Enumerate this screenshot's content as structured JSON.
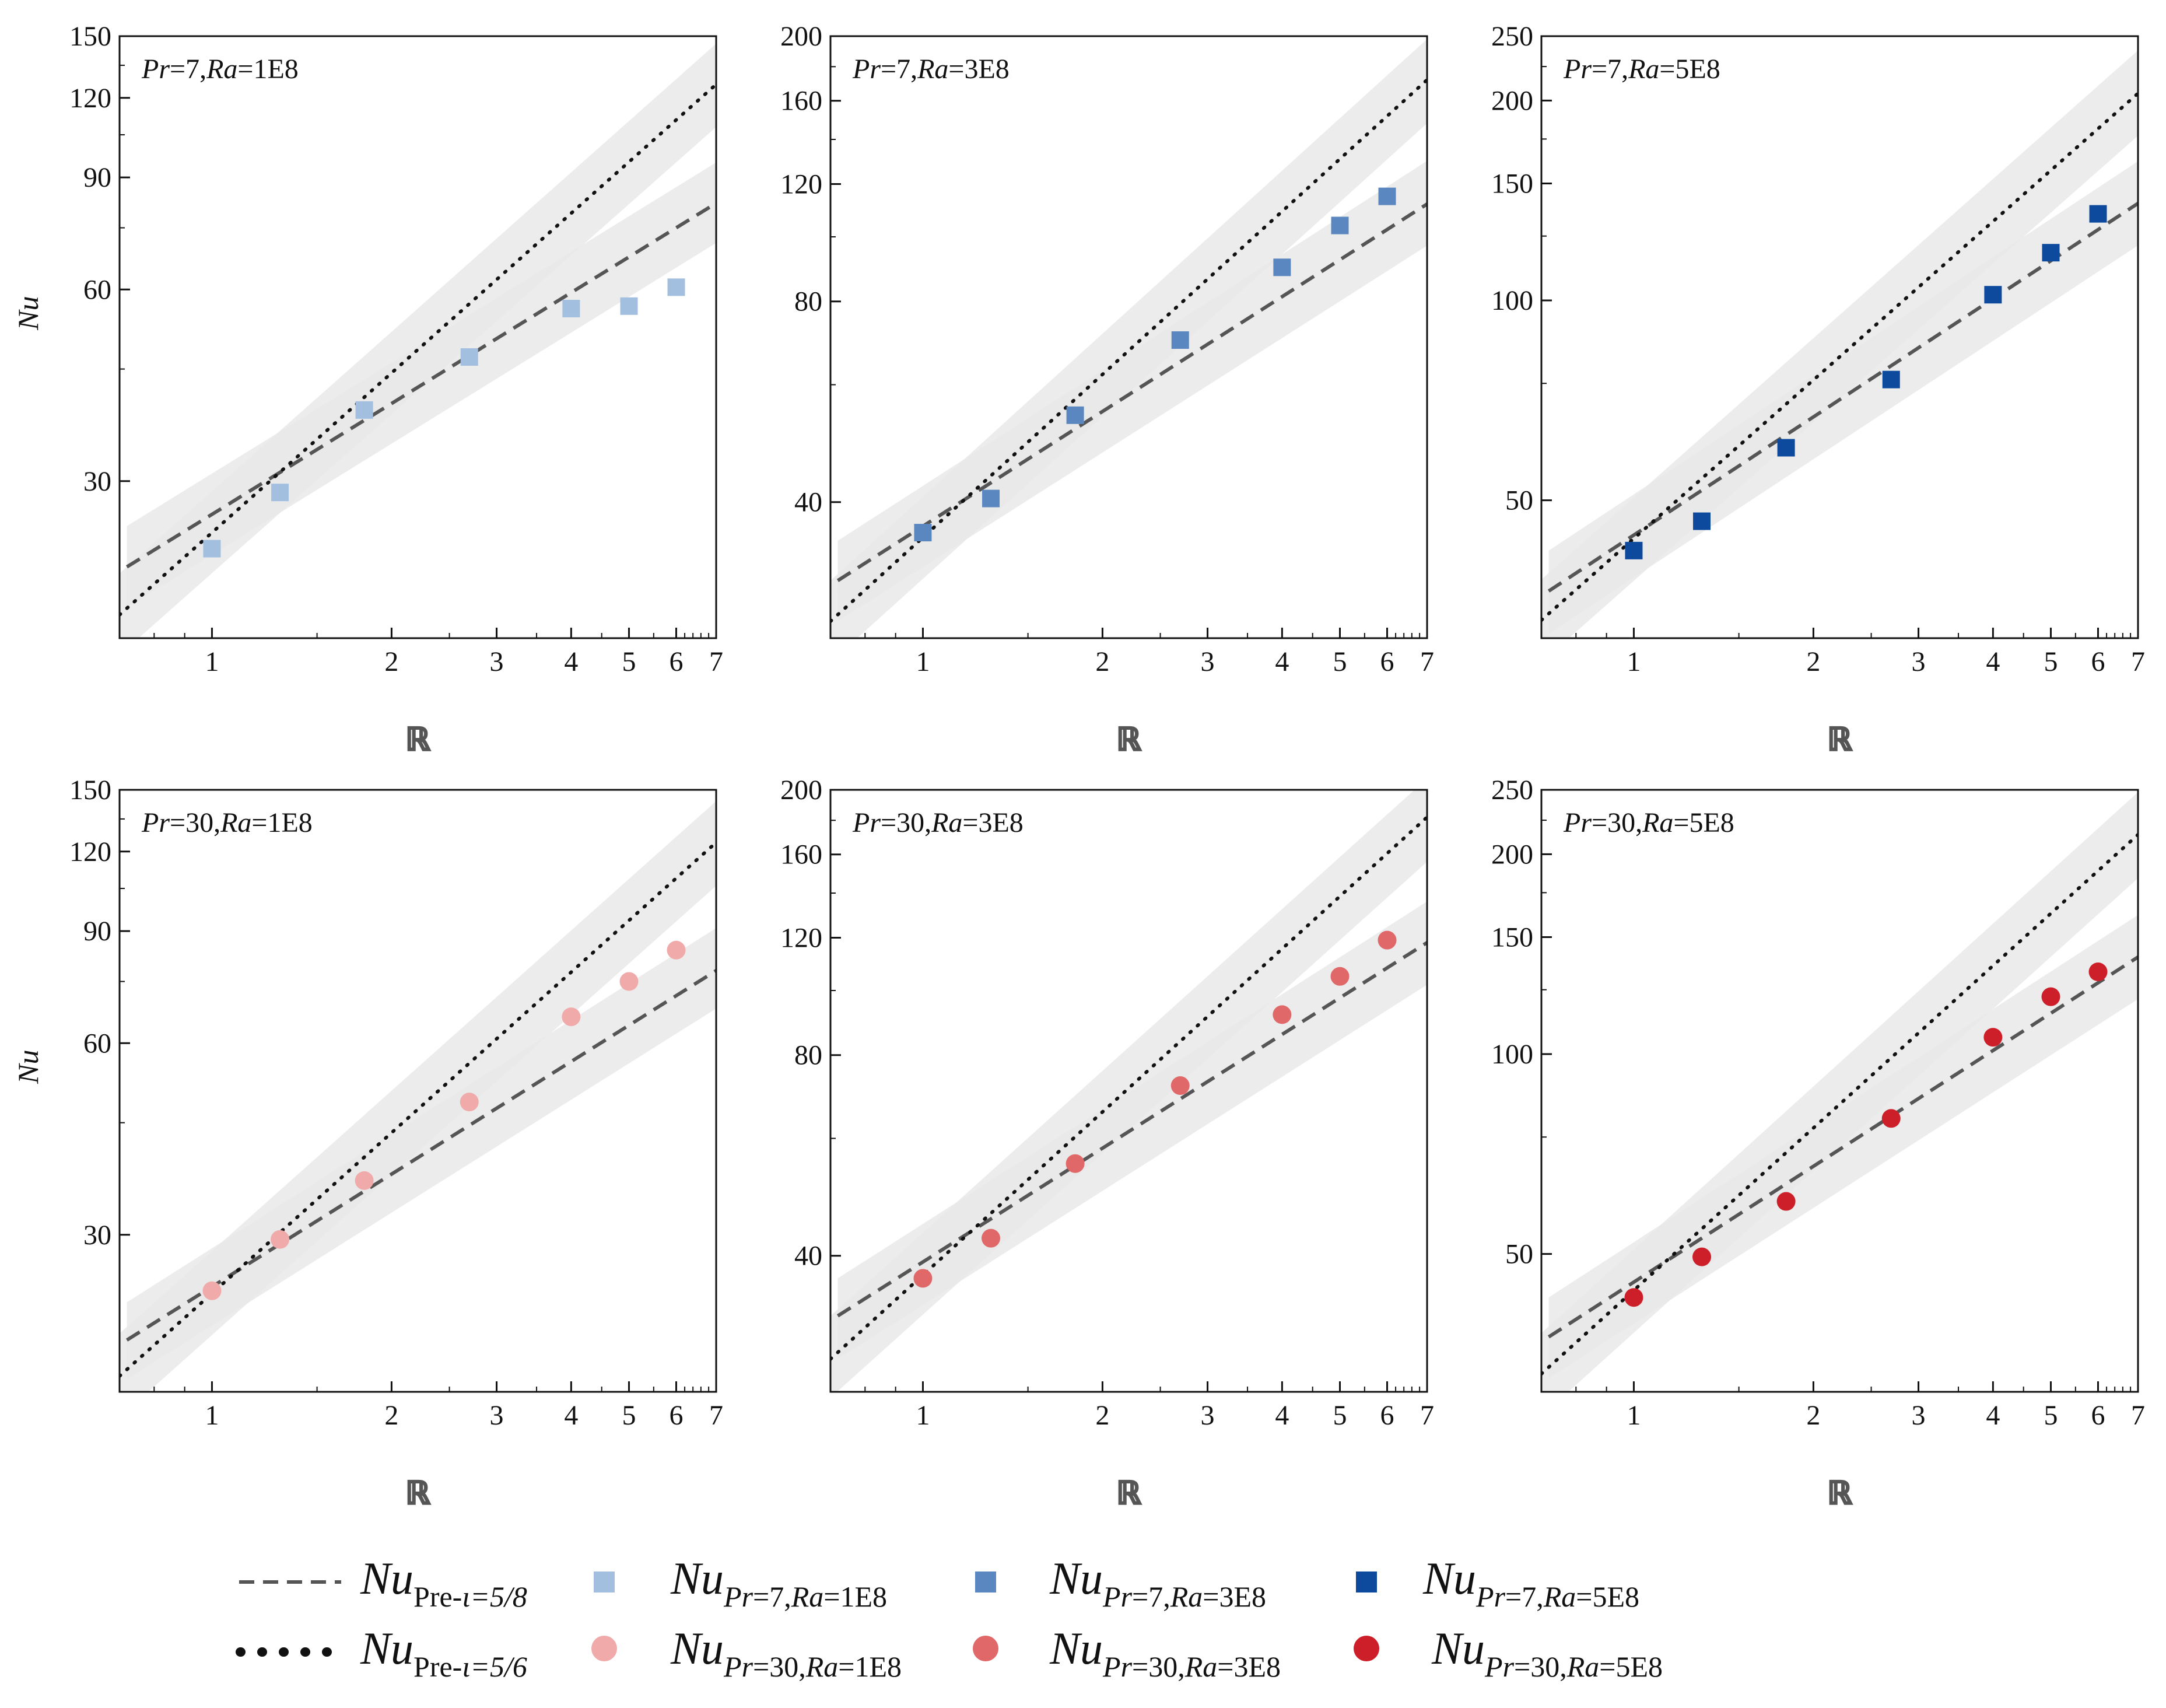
{
  "colors": {
    "band": "#e9e9e9",
    "dashed": "#555555",
    "dotted": "#111111",
    "sq_1e8": "#a3bfe0",
    "sq_3e8": "#5b87c0",
    "sq_5e8": "#0d4a9e",
    "ci_1e8": "#f1aaaa",
    "ci_3e8": "#e06868",
    "ci_5e8": "#cc1f29"
  },
  "legend": {
    "dashed_label": {
      "main": "Nu",
      "sub": "Pre-",
      "sub_exp": "ι=5/8"
    },
    "dotted_label": {
      "main": "Nu",
      "sub": "Pre-",
      "sub_exp": "ι=5/6"
    },
    "entries": [
      {
        "main": "Nu",
        "sub": "Pr=7,Ra=1E8",
        "marker": "square",
        "color_key": "sq_1e8"
      },
      {
        "main": "Nu",
        "sub": "Pr=30,Ra=1E8",
        "marker": "circle",
        "color_key": "ci_1e8"
      },
      {
        "main": "Nu",
        "sub": "Pr=7,Ra=3E8",
        "marker": "square",
        "color_key": "sq_3e8"
      },
      {
        "main": "Nu",
        "sub": "Pr=30,Ra=3E8",
        "marker": "circle",
        "color_key": "ci_3e8"
      },
      {
        "main": "Nu",
        "sub": "Pr=7,Ra=5E8",
        "marker": "square",
        "color_key": "sq_5e8"
      },
      {
        "main": "Nu",
        "sub": "Pr=30,Ra=5E8",
        "marker": "circle",
        "color_key": "ci_5e8"
      }
    ]
  },
  "chart_data": [
    {
      "type": "scatter",
      "title_pr": "Pr",
      "title_pr_val": "=7,",
      "title_ra": "Ra",
      "title_ra_val": "=1E8",
      "xlabel": "ℝ",
      "ylabel": "Nu",
      "xscale": "log",
      "yscale": "log",
      "xlim": [
        0.7,
        7
      ],
      "ylim": [
        17,
        150
      ],
      "xticks": [
        1,
        2,
        3,
        4,
        5,
        6,
        7
      ],
      "yticks": [
        30,
        60,
        90,
        120,
        150
      ],
      "marker": "square",
      "color_key": "sq_1e8",
      "x": [
        1.0,
        1.3,
        1.8,
        2.7,
        4.0,
        5.0,
        6.0
      ],
      "y": [
        23.5,
        28.8,
        38.8,
        47.0,
        56.0,
        56.5,
        60.5
      ],
      "dashed": {
        "x": [
          0.72,
          7.0
        ],
        "y": [
          22.0,
          82.0
        ]
      },
      "dotted": {
        "x": [
          0.7,
          7.0
        ],
        "y": [
          18.5,
          126.0
        ]
      },
      "dashed_band": {
        "lower": [
          19.0,
          71.0
        ],
        "upper": [
          25.5,
          95.0
        ]
      },
      "dotted_band": {
        "lower": [
          16.0,
          108.0
        ],
        "upper": [
          21.5,
          146.0
        ]
      },
      "show_ylabel": true
    },
    {
      "type": "scatter",
      "title_pr": "Pr",
      "title_pr_val": "=7,",
      "title_ra": "Ra",
      "title_ra_val": "=3E8",
      "xlabel": "ℝ",
      "ylabel": "Nu",
      "xscale": "log",
      "yscale": "log",
      "xlim": [
        0.7,
        7
      ],
      "ylim": [
        25,
        200
      ],
      "xticks": [
        1,
        2,
        3,
        4,
        5,
        6,
        7
      ],
      "yticks": [
        40,
        80,
        120,
        160,
        200
      ],
      "marker": "square",
      "color_key": "sq_3e8",
      "x": [
        1.0,
        1.3,
        1.8,
        2.7,
        4.0,
        5.0,
        6.0
      ],
      "y": [
        36.0,
        40.5,
        54.0,
        70.0,
        90.0,
        104.0,
        115.0
      ],
      "dashed": {
        "x": [
          0.72,
          7.0
        ],
        "y": [
          30.5,
          112.0
        ]
      },
      "dotted": {
        "x": [
          0.7,
          7.0
        ],
        "y": [
          26.5,
          172.0
        ]
      },
      "dashed_band": {
        "lower": [
          26.5,
          97.0
        ],
        "upper": [
          35.0,
          130.0
        ]
      },
      "dotted_band": {
        "lower": [
          23.0,
          148.0
        ],
        "upper": [
          30.5,
          198.0
        ]
      },
      "show_ylabel": false
    },
    {
      "type": "scatter",
      "title_pr": "Pr",
      "title_pr_val": "=7,",
      "title_ra": "Ra",
      "title_ra_val": "=5E8",
      "xlabel": "ℝ",
      "ylabel": "Nu",
      "xscale": "log",
      "yscale": "log",
      "xlim": [
        0.7,
        7
      ],
      "ylim": [
        31,
        250
      ],
      "xticks": [
        1,
        2,
        3,
        4,
        5,
        6,
        7
      ],
      "yticks": [
        50,
        100,
        150,
        200,
        250
      ],
      "marker": "square",
      "color_key": "sq_5e8",
      "x": [
        1.0,
        1.3,
        1.8,
        2.7,
        4.0,
        5.0,
        6.0
      ],
      "y": [
        42.0,
        46.5,
        60.0,
        76.0,
        102.0,
        118.0,
        135.0
      ],
      "dashed": {
        "x": [
          0.72,
          7.0
        ],
        "y": [
          36.5,
          140.0
        ]
      },
      "dotted": {
        "x": [
          0.7,
          7.0
        ],
        "y": [
          33.0,
          205.0
        ]
      },
      "dashed_band": {
        "lower": [
          31.5,
          121.0
        ],
        "upper": [
          42.0,
          162.0
        ]
      },
      "dotted_band": {
        "lower": [
          28.5,
          177.0
        ],
        "upper": [
          38.0,
          238.0
        ]
      },
      "show_ylabel": false
    },
    {
      "type": "scatter",
      "title_pr": "Pr",
      "title_pr_val": "=30,",
      "title_ra": "Ra",
      "title_ra_val": "=1E8",
      "xlabel": "ℝ",
      "ylabel": "Nu",
      "xscale": "log",
      "yscale": "log",
      "xlim": [
        0.7,
        7
      ],
      "ylim": [
        17,
        150
      ],
      "xticks": [
        1,
        2,
        3,
        4,
        5,
        6,
        7
      ],
      "yticks": [
        30,
        60,
        90,
        120,
        150
      ],
      "marker": "circle",
      "color_key": "ci_1e8",
      "x": [
        1.0,
        1.3,
        1.8,
        2.7,
        4.0,
        5.0,
        6.0
      ],
      "y": [
        24.5,
        29.5,
        36.5,
        48.5,
        66.0,
        75.0,
        84.0
      ],
      "dashed": {
        "x": [
          0.72,
          7.0
        ],
        "y": [
          20.5,
          78.0
        ]
      },
      "dotted": {
        "x": [
          0.7,
          7.0
        ],
        "y": [
          18.0,
          124.0
        ]
      },
      "dashed_band": {
        "lower": [
          17.8,
          68.0
        ],
        "upper": [
          23.5,
          91.0
        ]
      },
      "dotted_band": {
        "lower": [
          15.5,
          106.0
        ],
        "upper": [
          21.0,
          144.0
        ]
      },
      "show_ylabel": true
    },
    {
      "type": "scatter",
      "title_pr": "Pr",
      "title_pr_val": "=30,",
      "title_ra": "Ra",
      "title_ra_val": "=3E8",
      "xlabel": "ℝ",
      "ylabel": "Nu",
      "xscale": "log",
      "yscale": "log",
      "xlim": [
        0.7,
        7
      ],
      "ylim": [
        25,
        200
      ],
      "xticks": [
        1,
        2,
        3,
        4,
        5,
        6,
        7
      ],
      "yticks": [
        40,
        80,
        120,
        160,
        200
      ],
      "marker": "circle",
      "color_key": "ci_3e8",
      "x": [
        1.0,
        1.3,
        1.8,
        2.7,
        4.0,
        5.0,
        6.0
      ],
      "y": [
        37.0,
        42.5,
        55.0,
        72.0,
        92.0,
        105.0,
        119.0
      ],
      "dashed": {
        "x": [
          0.72,
          7.0
        ],
        "y": [
          32.5,
          118.0
        ]
      },
      "dotted": {
        "x": [
          0.7,
          7.0
        ],
        "y": [
          28.0,
          182.0
        ]
      },
      "dashed_band": {
        "lower": [
          28.0,
          102.0
        ],
        "upper": [
          37.0,
          136.0
        ]
      },
      "dotted_band": {
        "lower": [
          24.5,
          156.0
        ],
        "upper": [
          32.5,
          208.0
        ]
      },
      "show_ylabel": false
    },
    {
      "type": "scatter",
      "title_pr": "Pr",
      "title_pr_val": "=30,",
      "title_ra": "Ra",
      "title_ra_val": "=5E8",
      "xlabel": "ℝ",
      "ylabel": "Nu",
      "xscale": "log",
      "yscale": "log",
      "xlim": [
        0.7,
        7
      ],
      "ylim": [
        31,
        250
      ],
      "xticks": [
        1,
        2,
        3,
        4,
        5,
        6,
        7
      ],
      "yticks": [
        50,
        100,
        150,
        200,
        250
      ],
      "marker": "circle",
      "color_key": "ci_5e8",
      "x": [
        1.0,
        1.3,
        1.8,
        2.7,
        4.0,
        5.0,
        6.0
      ],
      "y": [
        43.0,
        49.5,
        60.0,
        80.0,
        106.0,
        122.0,
        133.0
      ],
      "dashed": {
        "x": [
          0.72,
          7.0
        ],
        "y": [
          37.5,
          140.0
        ]
      },
      "dotted": {
        "x": [
          0.7,
          7.0
        ],
        "y": [
          33.0,
          214.0
        ]
      },
      "dashed_band": {
        "lower": [
          32.5,
          121.0
        ],
        "upper": [
          43.0,
          162.0
        ]
      },
      "dotted_band": {
        "lower": [
          28.5,
          184.0
        ],
        "upper": [
          38.0,
          248.0
        ]
      },
      "show_ylabel": false
    }
  ]
}
